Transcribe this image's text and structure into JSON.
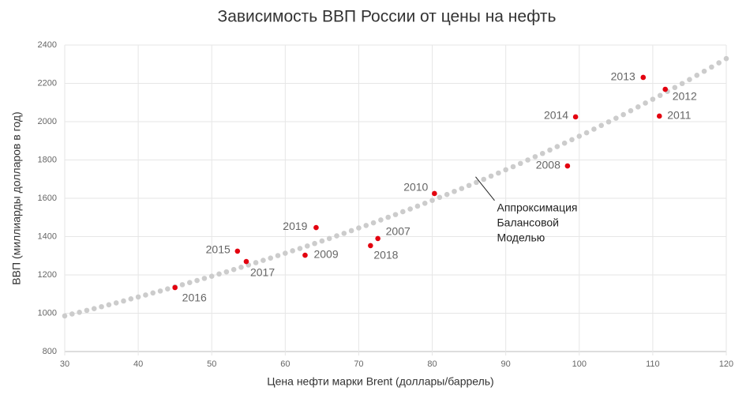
{
  "chart_data": {
    "type": "scatter",
    "title": "Зависимость ВВП России от цены на нефть",
    "x_label": "Цена нефти марки Brent (доллары/баррель)",
    "y_label": "ВВП (миллиарды долларов в год)",
    "xlim": [
      30,
      120
    ],
    "xticks": [
      30,
      40,
      50,
      60,
      70,
      80,
      90,
      100,
      110,
      120
    ],
    "ylim": [
      800,
      2400
    ],
    "yticks": [
      800,
      1000,
      1200,
      1400,
      1600,
      1800,
      2000,
      2200,
      2400
    ],
    "grid": true,
    "series": [
      {
        "color": "#cccccc",
        "x": [
          30,
          31,
          32,
          33,
          34,
          35,
          36,
          37,
          38,
          39,
          40,
          41,
          42,
          43,
          44,
          45,
          46,
          47,
          48,
          49,
          50,
          51,
          52,
          53,
          54,
          55,
          56,
          57,
          58,
          59,
          60,
          61,
          62,
          63,
          64,
          65,
          66,
          67,
          68,
          69,
          70,
          71,
          72,
          73,
          74,
          75,
          76,
          77,
          78,
          79,
          80,
          81,
          82,
          83,
          84,
          85,
          86,
          87,
          88,
          89,
          90,
          91,
          92,
          93,
          94,
          95,
          96,
          97,
          98,
          99,
          100,
          101,
          102,
          103,
          104,
          105,
          106,
          107,
          108,
          109,
          110,
          111,
          112,
          113,
          114,
          115,
          116,
          117,
          118,
          119,
          120
        ],
        "values": [
          986,
          996,
          1005,
          1015,
          1024,
          1034,
          1044,
          1054,
          1064,
          1075,
          1085,
          1095,
          1106,
          1116,
          1127,
          1138,
          1149,
          1160,
          1171,
          1182,
          1193,
          1205,
          1216,
          1228,
          1240,
          1252,
          1264,
          1276,
          1288,
          1301,
          1313,
          1326,
          1338,
          1351,
          1364,
          1377,
          1390,
          1404,
          1417,
          1431,
          1445,
          1458,
          1472,
          1487,
          1501,
          1515,
          1530,
          1544,
          1559,
          1574,
          1589,
          1605,
          1620,
          1636,
          1651,
          1667,
          1683,
          1699,
          1716,
          1732,
          1749,
          1765,
          1782,
          1800,
          1817,
          1834,
          1852,
          1870,
          1888,
          1906,
          1924,
          1942,
          1961,
          1980,
          1999,
          2018,
          2037,
          2057,
          2077,
          2097,
          2117,
          2137,
          2158,
          2178,
          2199,
          2220,
          2242,
          2263,
          2285,
          2307,
          2329
        ]
      },
      {
        "color": "#e3000f",
        "labels": [
          "2013",
          "2012",
          "2011",
          "2014",
          "2008",
          "2010",
          "2019",
          "2007",
          "2018",
          "2015",
          "2009",
          "2017",
          "2016"
        ],
        "x": [
          108.7,
          111.7,
          110.9,
          99.5,
          98.4,
          80.3,
          64.2,
          72.6,
          71.6,
          53.5,
          62.7,
          54.7,
          45.0
        ],
        "values": [
          2231,
          2169,
          2029,
          2025,
          1769,
          1625,
          1447,
          1390,
          1353,
          1324,
          1303,
          1270,
          1134
        ]
      }
    ],
    "annotation": {
      "lines": [
        "Аппроксимация",
        "Балансовой",
        "Моделью"
      ],
      "x": 85.9,
      "y": 1712
    }
  }
}
